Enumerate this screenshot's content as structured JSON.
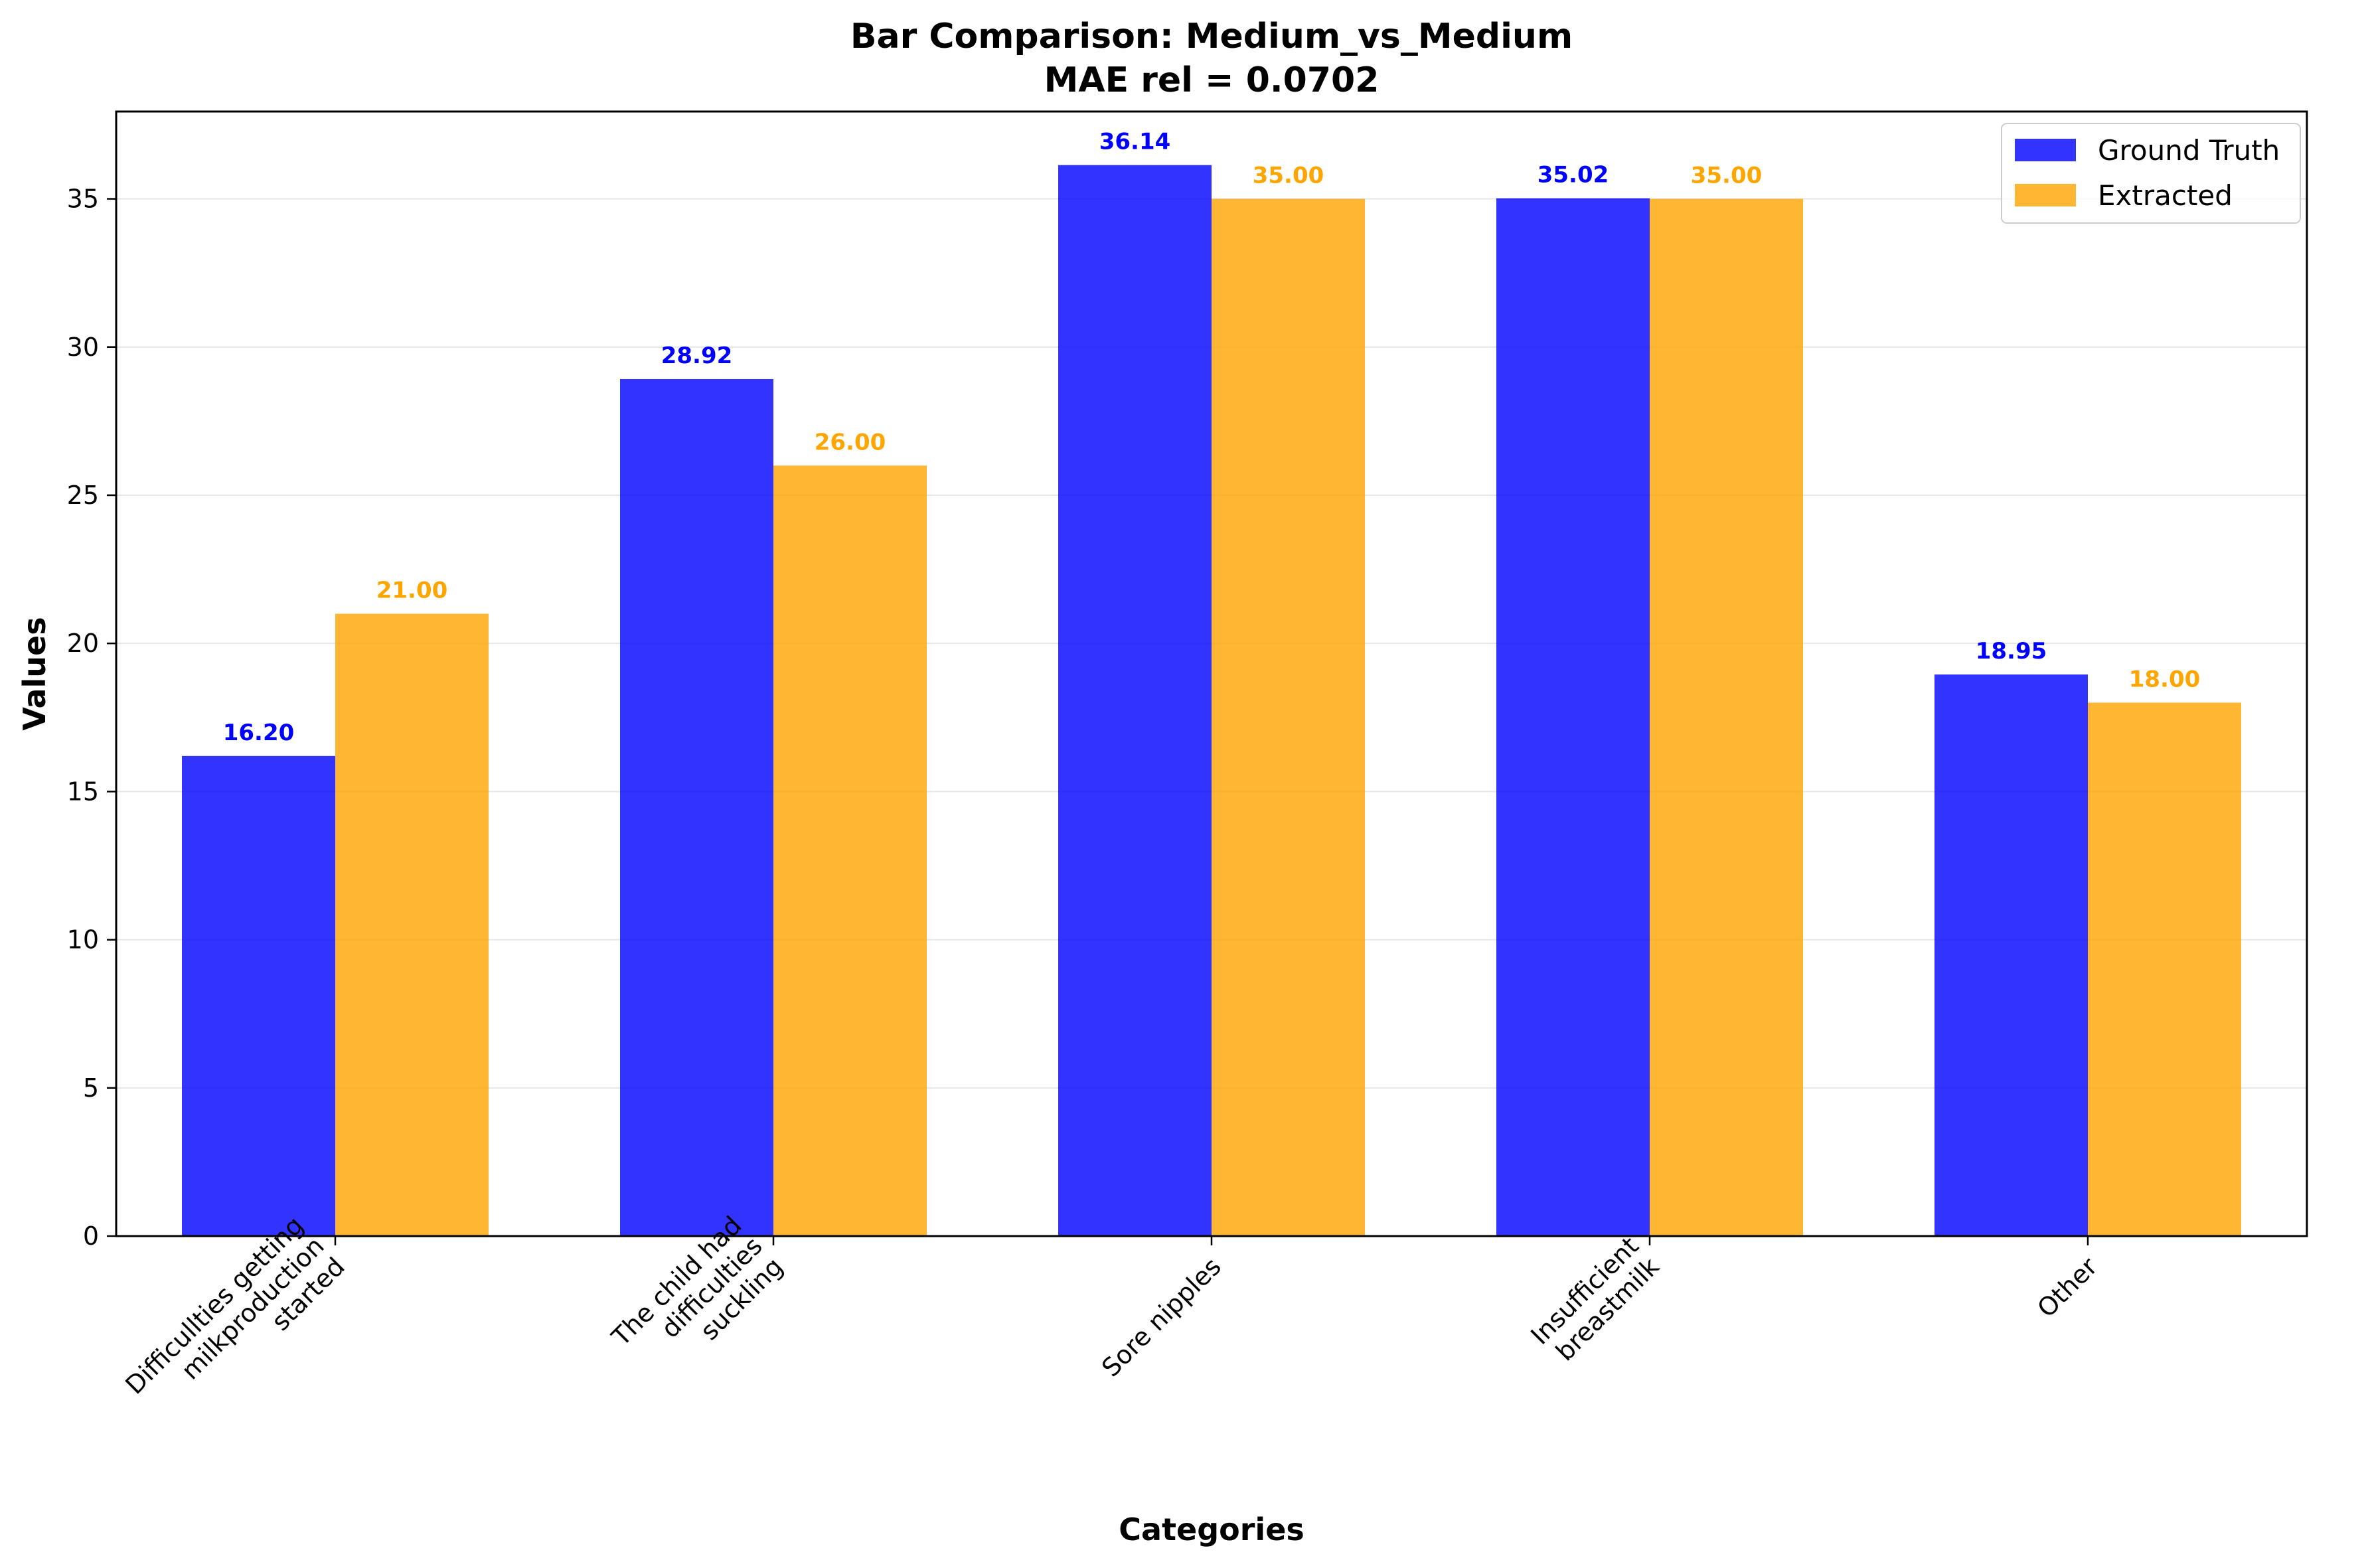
{
  "chart_data": {
    "type": "bar",
    "title": "Bar Comparison: Medium_vs_Medium",
    "subtitle": "MAE rel = 0.0702",
    "xlabel": "Categories",
    "ylabel": "Values",
    "categories": [
      [
        "Difficullties getting",
        "milkproduction",
        "started"
      ],
      [
        "The child had",
        "difficulties",
        "suckling"
      ],
      [
        "Sore nipples"
      ],
      [
        "Insufficient",
        "breastmilk"
      ],
      [
        "Other"
      ]
    ],
    "series": [
      {
        "name": "Ground Truth",
        "color": "#0000ff",
        "label_color": "#0000ff",
        "values": [
          16.2,
          28.92,
          36.14,
          35.02,
          18.95
        ],
        "labels": [
          "16.20",
          "28.92",
          "36.14",
          "35.02",
          "18.95"
        ]
      },
      {
        "name": "Extracted",
        "color": "#ffa500",
        "label_color": "#ffa500",
        "values": [
          21.0,
          26.0,
          35.0,
          35.0,
          18.0
        ],
        "labels": [
          "21.00",
          "26.00",
          "35.00",
          "35.00",
          "18.00"
        ]
      }
    ],
    "ylim": [
      0,
      37.947
    ],
    "yticks": [
      0,
      5,
      10,
      15,
      20,
      25,
      30,
      35
    ],
    "grid": "horizontal",
    "legend_position": "top-right",
    "category_label_rotation": -45
  }
}
